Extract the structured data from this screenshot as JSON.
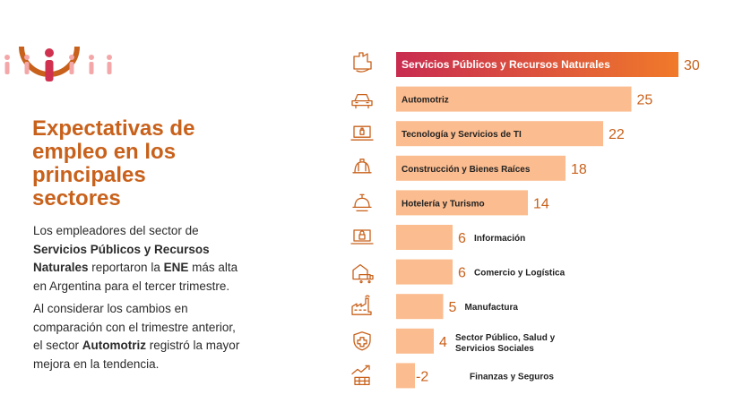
{
  "heading": {
    "line1": "Expectativas de",
    "line2": "empleo en los",
    "line3": "principales",
    "line4": "sectores"
  },
  "paragraph1": {
    "t1": "Los empleadores del sector de",
    "b1": "Servicios Públicos y Recursos",
    "b2": "Naturales",
    "t2": " reportaron la ",
    "b3": "ENE",
    "t3": " más alta",
    "t4": "en Argentina para el tercer trimestre."
  },
  "paragraph2": {
    "t1": "Al considerar los cambios en",
    "t2": "comparación con el trimestre anterior,",
    "t3": "el sector ",
    "b1": "Automotriz",
    "t4": " registró la mayor",
    "t5": "mejora en la tendencia."
  },
  "colors": {
    "accent": "#c8611b",
    "bar": "#fbbc8f",
    "top_bar_gradient": [
      "#c82c50",
      "#f07a2a"
    ],
    "icon": "#c8611b"
  },
  "chart_data": {
    "type": "bar",
    "orientation": "horizontal",
    "categories": [
      "Servicios Públicos y Recursos Naturales",
      "Automotriz",
      "Tecnología y Servicios de TI",
      "Construcción y Bienes Raíces",
      "Hotelería y Turismo",
      "Información",
      "Comercio y Logística",
      "Manufactura",
      "Sector Público, Salud y Servicios Sociales",
      "Finanzas y Seguros"
    ],
    "values": [
      30,
      25,
      22,
      18,
      14,
      6,
      6,
      5,
      4,
      -2
    ],
    "value_labels": [
      "30",
      "25",
      "22",
      "18",
      "14",
      "6",
      "6",
      "5",
      "4",
      "-2"
    ],
    "icons": [
      "factory-hand-icon",
      "car-icon",
      "laptop-icon",
      "hard-hat-icon",
      "service-bell-icon",
      "laptop-lock-icon",
      "truck-warehouse-icon",
      "factory-icon",
      "medical-shield-icon",
      "chart-growth-icon"
    ],
    "highlighted_index": 0
  }
}
